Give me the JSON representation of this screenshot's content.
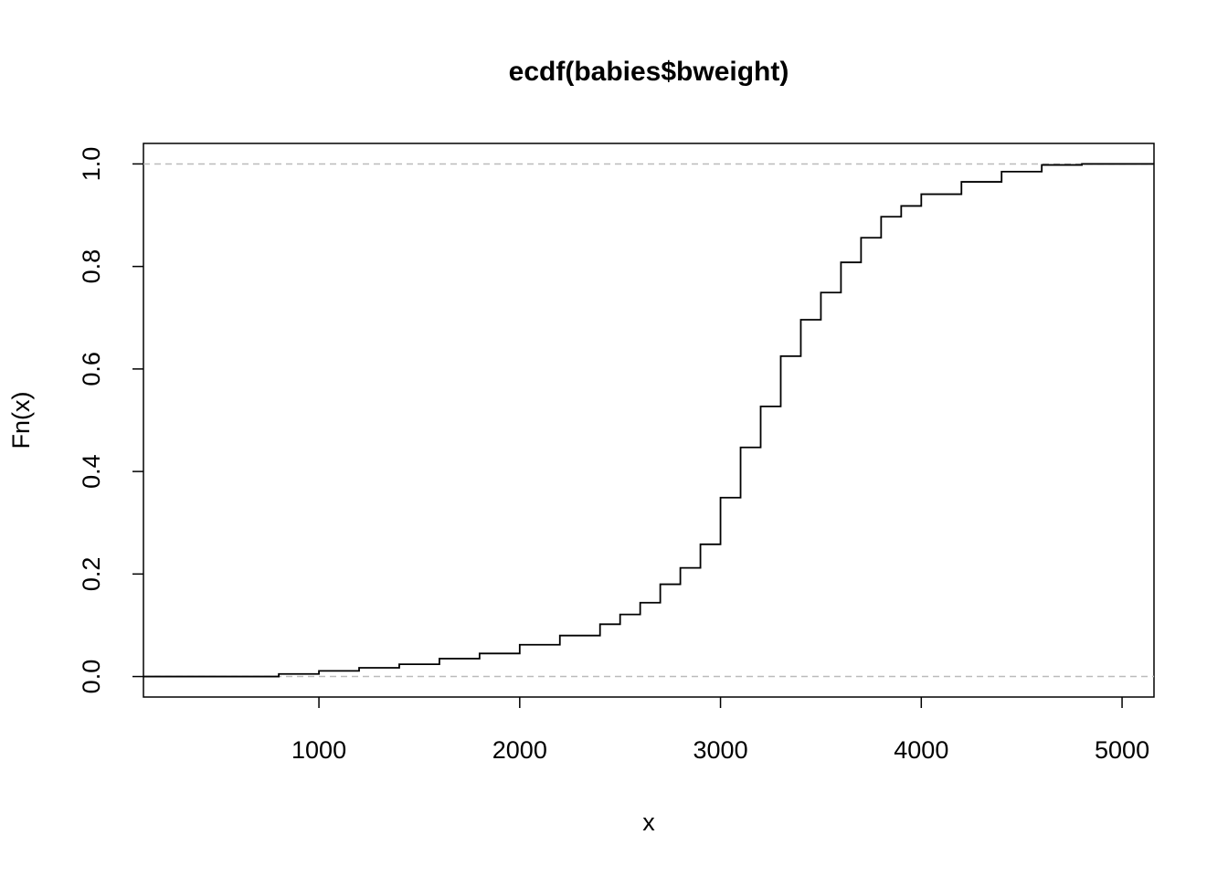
{
  "chart_data": {
    "type": "step",
    "title": "ecdf(babies$bweight)",
    "x_label": "x",
    "y_label": "Fn(x)",
    "x": [
      300,
      600,
      800,
      1000,
      1200,
      1400,
      1600,
      1800,
      2000,
      2200,
      2400,
      2500,
      2600,
      2700,
      2800,
      2900,
      3000,
      3100,
      3200,
      3300,
      3400,
      3500,
      3600,
      3700,
      3800,
      3900,
      4000,
      4200,
      4400,
      4600,
      4800,
      5000
    ],
    "values": [
      0,
      0,
      0.005,
      0.011,
      0.017,
      0.024,
      0.035,
      0.045,
      0.062,
      0.08,
      0.102,
      0.121,
      0.144,
      0.18,
      0.212,
      0.258,
      0.349,
      0.447,
      0.527,
      0.625,
      0.696,
      0.749,
      0.808,
      0.856,
      0.897,
      0.918,
      0.941,
      0.965,
      0.985,
      0.998,
      1,
      1
    ],
    "color": "#000000",
    "reference_lines": [
      0,
      1
    ],
    "reference_color": "#bbbbbb",
    "xlim": [
      126,
      5159
    ],
    "ylim": [
      -0.04,
      1.04
    ],
    "xticks": [
      1000,
      2000,
      3000,
      4000,
      5000
    ],
    "yticks": [
      {
        "value": 0,
        "label": "0.0"
      },
      {
        "value": 0.2,
        "label": "0.2"
      },
      {
        "value": 0.4,
        "label": "0.4"
      },
      {
        "value": 0.6,
        "label": "0.6"
      },
      {
        "value": 0.8,
        "label": "0.8"
      },
      {
        "value": 1,
        "label": "1.0"
      }
    ]
  }
}
